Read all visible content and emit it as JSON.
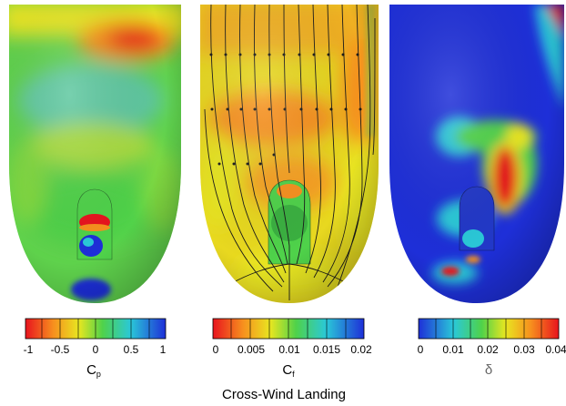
{
  "title": "Cross-Wind Landing",
  "panels": [
    {
      "variable_main": "C",
      "variable_sub": "p",
      "colorbar": {
        "direction": "red-to-blue",
        "ticks": [
          "-1",
          "-0.5",
          "0",
          "0.5",
          "1"
        ]
      }
    },
    {
      "variable_main": "C",
      "variable_sub": "f",
      "colorbar": {
        "direction": "red-to-blue",
        "ticks": [
          "0",
          "0.005",
          "0.01",
          "0.015",
          "0.02"
        ]
      }
    },
    {
      "variable_main": "δ",
      "variable_sub": "",
      "colorbar": {
        "direction": "blue-to-red",
        "ticks": [
          "0",
          "0.01",
          "0.02",
          "0.03",
          "0.04"
        ]
      }
    }
  ],
  "colors": {
    "red": "#e8141e",
    "orange": "#f7901e",
    "yellow": "#e8e620",
    "green": "#4fd24a",
    "cyan": "#2ac8d8",
    "blue": "#1e2fd8"
  }
}
